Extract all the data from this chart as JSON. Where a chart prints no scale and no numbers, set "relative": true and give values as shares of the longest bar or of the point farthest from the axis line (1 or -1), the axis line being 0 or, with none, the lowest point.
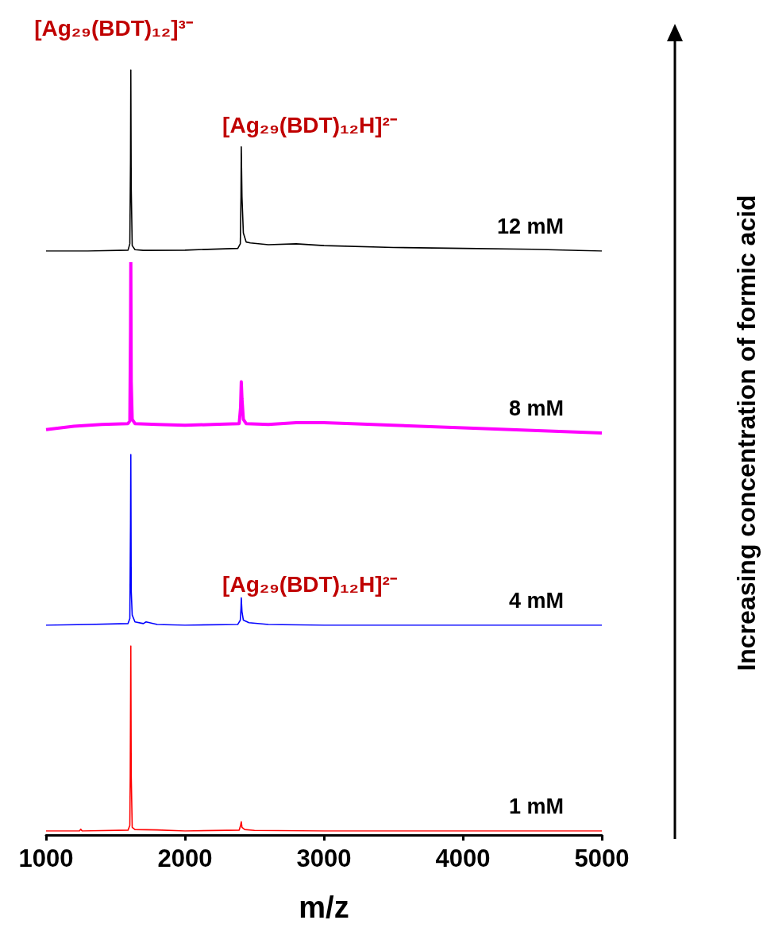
{
  "chart_data": [
    {
      "type": "line",
      "relative": true,
      "xlim": [
        1000,
        5000
      ],
      "xticks": [
        1000,
        2000,
        3000,
        4000,
        5000
      ],
      "tick_labels": false,
      "annotations": [
        "[Ag₂₉(BDT)₁₂]³⁻",
        "[Ag₂₉(BDT)₁₂H]²⁻",
        "Increasing concentration of formic acid"
      ],
      "series": [
        {
          "name": "12 mM",
          "color": "#000000",
          "x": [
            1000,
            1300,
            1590,
            1603,
            1608,
            1610,
            1613,
            1620,
            1640,
            1700,
            2000,
            2380,
            2398,
            2403,
            2405,
            2410,
            2420,
            2440,
            2470,
            2600,
            2800,
            3000,
            3500,
            4000,
            4500,
            5000
          ],
          "values": [
            0,
            0,
            0.005,
            0.04,
            0.5,
            1,
            0.35,
            0.03,
            0.008,
            0.004,
            0.005,
            0.015,
            0.04,
            0.3,
            0.575,
            0.3,
            0.1,
            0.05,
            0.045,
            0.035,
            0.04,
            0.03,
            0.02,
            0.015,
            0.01,
            0
          ]
        }
      ]
    },
    {
      "type": "line",
      "relative": true,
      "xlim": [
        1000,
        5000
      ],
      "xticks": [
        1000,
        2000,
        3000,
        4000,
        5000
      ],
      "tick_labels": false,
      "series": [
        {
          "name": "8 mM",
          "color": "#ff00ff",
          "x": [
            1000,
            1200,
            1400,
            1590,
            1603,
            1608,
            1610,
            1613,
            1620,
            1640,
            1800,
            2000,
            2200,
            2390,
            2400,
            2405,
            2410,
            2420,
            2440,
            2600,
            2800,
            3000,
            3200,
            3500,
            4000,
            4500,
            5000
          ],
          "values": [
            0.02,
            0.04,
            0.05,
            0.055,
            0.07,
            0.6,
            1,
            0.3,
            0.08,
            0.055,
            0.05,
            0.045,
            0.05,
            0.055,
            0.15,
            0.3,
            0.2,
            0.08,
            0.055,
            0.05,
            0.06,
            0.06,
            0.055,
            0.045,
            0.03,
            0.015,
            0
          ]
        }
      ]
    },
    {
      "type": "line",
      "relative": true,
      "xlim": [
        1000,
        5000
      ],
      "xticks": [
        1000,
        2000,
        3000,
        4000,
        5000
      ],
      "tick_labels": false,
      "annotations": [
        "[Ag₂₉(BDT)₁₂H]²⁻"
      ],
      "series": [
        {
          "name": "4 mM",
          "color": "#0000ff",
          "x": [
            1000,
            1300,
            1590,
            1603,
            1608,
            1610,
            1613,
            1620,
            1640,
            1700,
            1720,
            1800,
            2000,
            2380,
            2398,
            2403,
            2405,
            2410,
            2420,
            2460,
            2600,
            3000,
            4000,
            5000
          ],
          "values": [
            0,
            0.005,
            0.01,
            0.04,
            0.6,
            1,
            0.2,
            0.06,
            0.02,
            0.01,
            0.02,
            0.005,
            0,
            0.005,
            0.03,
            0.1,
            0.16,
            0.08,
            0.03,
            0.015,
            0.005,
            0,
            0,
            0
          ]
        }
      ]
    },
    {
      "type": "line",
      "relative": true,
      "xlim": [
        1000,
        5000
      ],
      "xticks": [
        1000,
        2000,
        3000,
        4000,
        5000
      ],
      "tick_labels": "x",
      "xlabel": "m/z",
      "series": [
        {
          "name": "1 mM",
          "color": "#ff0000",
          "x": [
            1000,
            1240,
            1250,
            1260,
            1590,
            1603,
            1606,
            1610,
            1613,
            1620,
            1640,
            1800,
            2000,
            2390,
            2400,
            2405,
            2410,
            2430,
            2500,
            3000,
            4000,
            5000
          ],
          "values": [
            0,
            0,
            0.01,
            0,
            0.005,
            0.03,
            0.3,
            1,
            0.3,
            0.02,
            0.008,
            0.006,
            0,
            0.005,
            0.03,
            0.05,
            0.02,
            0.008,
            0.003,
            0,
            0,
            0
          ]
        }
      ]
    }
  ]
}
